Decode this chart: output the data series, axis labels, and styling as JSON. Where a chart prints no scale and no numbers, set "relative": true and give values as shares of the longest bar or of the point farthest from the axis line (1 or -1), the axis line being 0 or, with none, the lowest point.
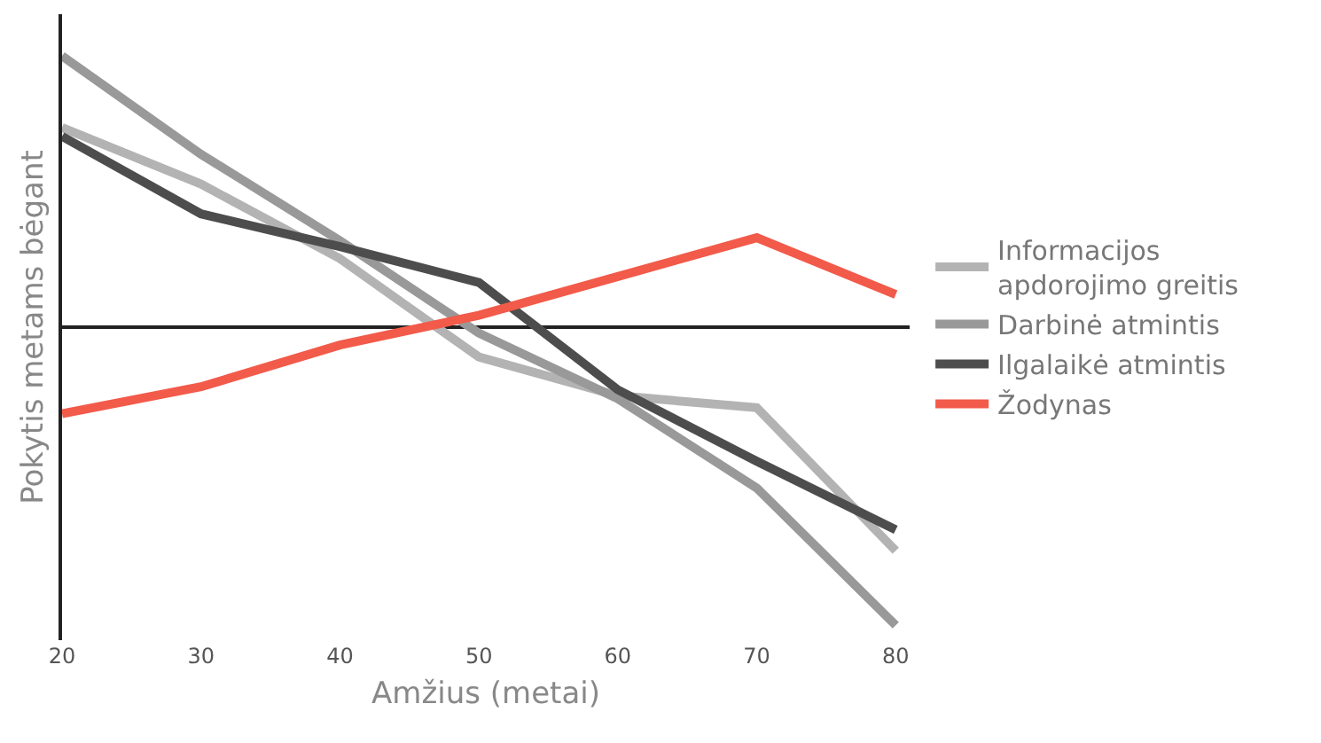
{
  "chart_data": {
    "type": "line",
    "relative": true,
    "xlabel": "Amžius (metai)",
    "ylabel": "Pokytis metams bėgant",
    "x": [
      20,
      30,
      40,
      50,
      60,
      70,
      80
    ],
    "xlim": [
      20,
      81
    ],
    "xticks": [
      20,
      30,
      40,
      50,
      60,
      70,
      80
    ],
    "grid": false,
    "legend": "right",
    "marker": "none",
    "line_style": "solid",
    "series": [
      {
        "name": "Informacijos apdorojimo greitis",
        "color": "#b3b3b3",
        "values": [
          0.67,
          0.48,
          0.23,
          -0.1,
          -0.23,
          -0.27,
          -0.75
        ]
      },
      {
        "name": "Darbinė atmintis",
        "color": "#999999",
        "values": [
          0.91,
          0.58,
          0.29,
          -0.02,
          -0.24,
          -0.54,
          -1
        ]
      },
      {
        "name": "Ilgalaikė atmintis",
        "color": "#4d4d4d",
        "values": [
          0.64,
          0.38,
          0.27,
          0.15,
          -0.21,
          -0.45,
          -0.68
        ]
      },
      {
        "name": "Žodynas",
        "color": "#f25a4a",
        "values": [
          -0.29,
          -0.2,
          -0.06,
          0.04,
          0.17,
          0.3,
          0.11
        ]
      }
    ]
  }
}
